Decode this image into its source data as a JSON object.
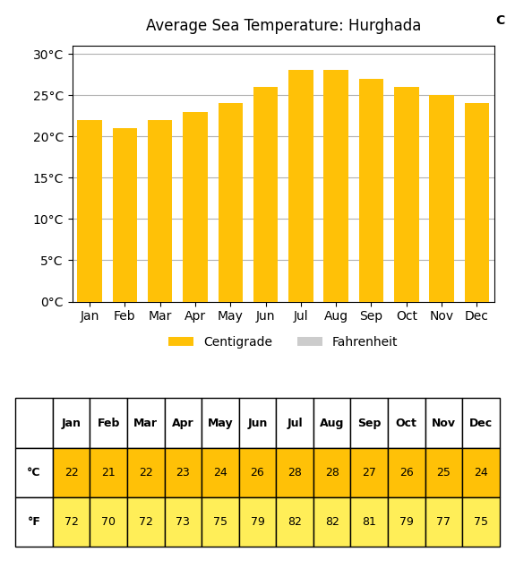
{
  "chart_data": [
    {
      "type": "bar",
      "title": "Average Sea Temperature: Hurghada",
      "annotations": [
        "C"
      ],
      "categories": [
        "Jan",
        "Feb",
        "Mar",
        "Apr",
        "May",
        "Jun",
        "Jul",
        "Aug",
        "Sep",
        "Oct",
        "Nov",
        "Dec"
      ],
      "series": [
        {
          "name": "Centigrade",
          "color": "#FFC107",
          "values": [
            22,
            21,
            22,
            23,
            24,
            26,
            28,
            28,
            27,
            26,
            25,
            24
          ]
        },
        {
          "name": "Fahrenheit",
          "color": "#cccccc",
          "values": [
            null,
            null,
            null,
            null,
            null,
            null,
            null,
            null,
            null,
            null,
            null,
            null
          ]
        }
      ],
      "ylim": [
        0,
        31
      ],
      "yticks": [
        {
          "value": 0,
          "label": "0°C"
        },
        {
          "value": 5,
          "label": "5°C"
        },
        {
          "value": 10,
          "label": "10°C"
        },
        {
          "value": 15,
          "label": "15°C"
        },
        {
          "value": 20,
          "label": "20°C"
        },
        {
          "value": 25,
          "label": "25°C"
        },
        {
          "value": 30,
          "label": "30°C"
        }
      ],
      "grid": true,
      "legend": "upper center"
    },
    {
      "type": "table",
      "categories": [
        "Jan",
        "Feb",
        "Mar",
        "Apr",
        "May",
        "Jun",
        "Jul",
        "Aug",
        "Sep",
        "Oct",
        "Nov",
        "Dec"
      ],
      "series": [
        {
          "name": "°C",
          "color": "#FFC107",
          "values": [
            22,
            21,
            22,
            23,
            24,
            26,
            28,
            28,
            27,
            26,
            25,
            24
          ]
        },
        {
          "name": "°F",
          "color": "#FFEE58",
          "values": [
            72,
            70,
            72,
            73,
            75,
            79,
            82,
            82,
            81,
            79,
            77,
            75
          ]
        }
      ]
    }
  ]
}
